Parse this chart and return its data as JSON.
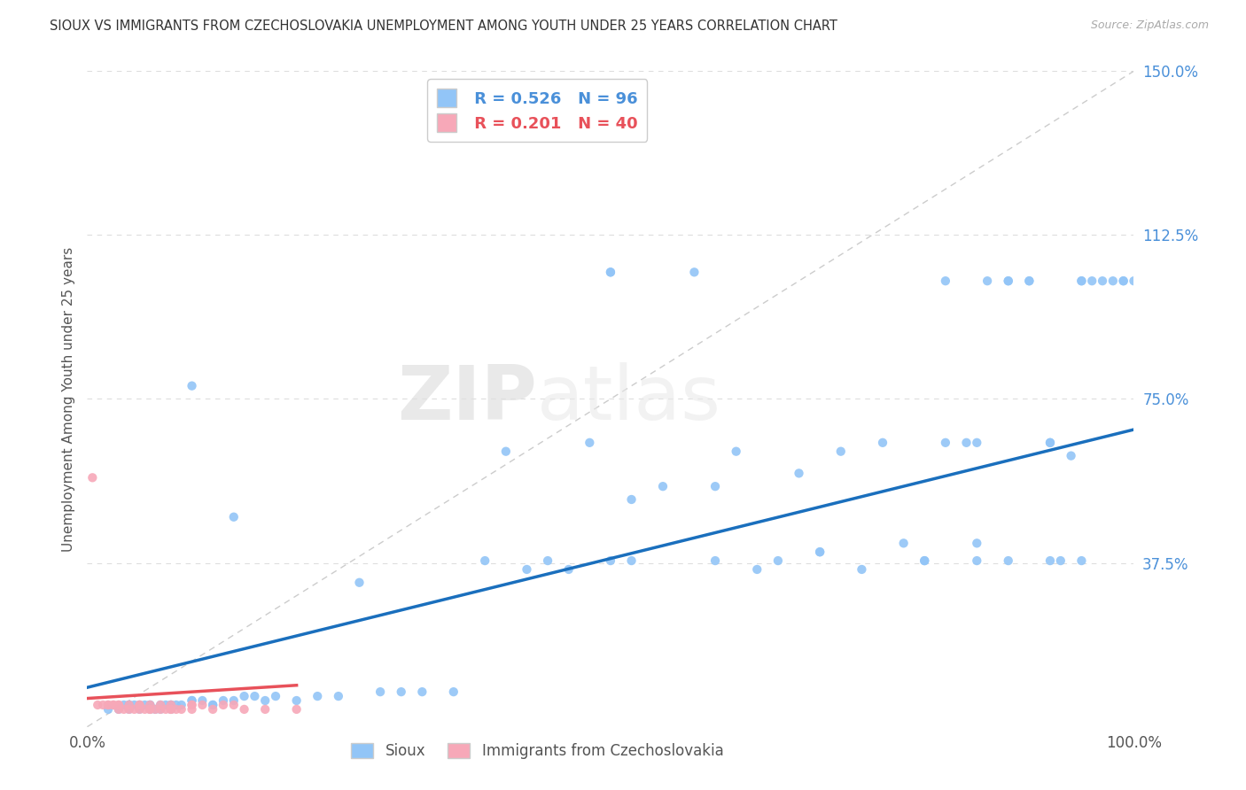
{
  "title": "SIOUX VS IMMIGRANTS FROM CZECHOSLOVAKIA UNEMPLOYMENT AMONG YOUTH UNDER 25 YEARS CORRELATION CHART",
  "source": "Source: ZipAtlas.com",
  "watermark": "ZIPatlas",
  "ylabel": "Unemployment Among Youth under 25 years",
  "xlim": [
    0,
    1.0
  ],
  "ylim": [
    0,
    1.5
  ],
  "xticks": [
    0,
    0.25,
    0.5,
    0.75,
    1.0
  ],
  "xticklabels": [
    "0.0%",
    "",
    "",
    "",
    "100.0%"
  ],
  "ytick_positions": [
    0,
    0.375,
    0.75,
    1.125,
    1.5
  ],
  "yticklabels": [
    "",
    "37.5%",
    "75.0%",
    "112.5%",
    "150.0%"
  ],
  "sioux_R": 0.526,
  "sioux_N": 96,
  "czech_R": 0.201,
  "czech_N": 40,
  "sioux_color": "#92c5f7",
  "czech_color": "#f7a8b8",
  "sioux_line_color": "#1a6fbd",
  "czech_line_color": "#e8515a",
  "ref_line_color": "#cccccc",
  "background_color": "#ffffff",
  "grid_color": "#dddddd",
  "sioux_x": [
    0.02,
    0.03,
    0.035,
    0.04,
    0.04,
    0.045,
    0.05,
    0.05,
    0.055,
    0.06,
    0.06,
    0.065,
    0.07,
    0.07,
    0.075,
    0.08,
    0.08,
    0.085,
    0.09,
    0.1,
    0.1,
    0.11,
    0.12,
    0.13,
    0.14,
    0.15,
    0.16,
    0.17,
    0.18,
    0.2,
    0.22,
    0.24,
    0.26,
    0.28,
    0.3,
    0.32,
    0.35,
    0.38,
    0.4,
    0.42,
    0.44,
    0.46,
    0.48,
    0.5,
    0.5,
    0.52,
    0.55,
    0.58,
    0.6,
    0.62,
    0.64,
    0.66,
    0.68,
    0.7,
    0.72,
    0.74,
    0.76,
    0.78,
    0.8,
    0.82,
    0.84,
    0.85,
    0.85,
    0.86,
    0.88,
    0.88,
    0.9,
    0.9,
    0.92,
    0.92,
    0.93,
    0.94,
    0.95,
    0.95,
    0.96,
    0.97,
    0.98,
    0.99,
    0.99,
    1.0,
    0.04,
    0.06,
    0.08,
    0.1,
    0.12,
    0.14,
    0.5,
    0.52,
    0.6,
    0.7,
    0.8,
    0.82,
    0.85,
    0.88,
    0.92,
    0.95
  ],
  "sioux_y": [
    0.04,
    0.04,
    0.05,
    0.04,
    0.05,
    0.05,
    0.04,
    0.05,
    0.05,
    0.04,
    0.05,
    0.04,
    0.05,
    0.04,
    0.05,
    0.05,
    0.04,
    0.05,
    0.05,
    0.78,
    0.06,
    0.06,
    0.05,
    0.06,
    0.48,
    0.07,
    0.07,
    0.06,
    0.07,
    0.06,
    0.07,
    0.07,
    0.33,
    0.08,
    0.08,
    0.08,
    0.08,
    0.38,
    0.63,
    0.36,
    0.38,
    0.36,
    0.65,
    1.04,
    1.04,
    0.52,
    0.55,
    1.04,
    0.38,
    0.63,
    0.36,
    0.38,
    0.58,
    0.4,
    0.63,
    0.36,
    0.65,
    0.42,
    0.38,
    1.02,
    0.65,
    0.42,
    0.65,
    1.02,
    1.02,
    1.02,
    1.02,
    1.02,
    0.65,
    0.65,
    0.38,
    0.62,
    1.02,
    1.02,
    1.02,
    1.02,
    1.02,
    1.02,
    1.02,
    1.02,
    0.05,
    0.05,
    0.05,
    0.06,
    0.05,
    0.06,
    0.38,
    0.38,
    0.55,
    0.4,
    0.38,
    0.65,
    0.38,
    0.38,
    0.38,
    0.38
  ],
  "czech_x": [
    0.005,
    0.01,
    0.015,
    0.02,
    0.02,
    0.025,
    0.03,
    0.03,
    0.035,
    0.04,
    0.04,
    0.045,
    0.05,
    0.05,
    0.055,
    0.06,
    0.06,
    0.065,
    0.07,
    0.07,
    0.075,
    0.08,
    0.08,
    0.085,
    0.09,
    0.1,
    0.1,
    0.11,
    0.12,
    0.13,
    0.14,
    0.15,
    0.17,
    0.2,
    0.025,
    0.03,
    0.05,
    0.06,
    0.08,
    0.1
  ],
  "czech_y": [
    0.57,
    0.05,
    0.05,
    0.05,
    0.05,
    0.05,
    0.05,
    0.04,
    0.04,
    0.04,
    0.05,
    0.04,
    0.04,
    0.05,
    0.04,
    0.04,
    0.05,
    0.04,
    0.04,
    0.05,
    0.04,
    0.04,
    0.05,
    0.04,
    0.04,
    0.04,
    0.05,
    0.05,
    0.04,
    0.05,
    0.05,
    0.04,
    0.04,
    0.04,
    0.05,
    0.05,
    0.05,
    0.04,
    0.04,
    0.05
  ],
  "sioux_trend_x": [
    0.0,
    1.0
  ],
  "sioux_trend_y": [
    0.09,
    0.68
  ],
  "czech_trend_x": [
    0.0,
    0.2
  ],
  "czech_trend_y": [
    0.065,
    0.095
  ]
}
